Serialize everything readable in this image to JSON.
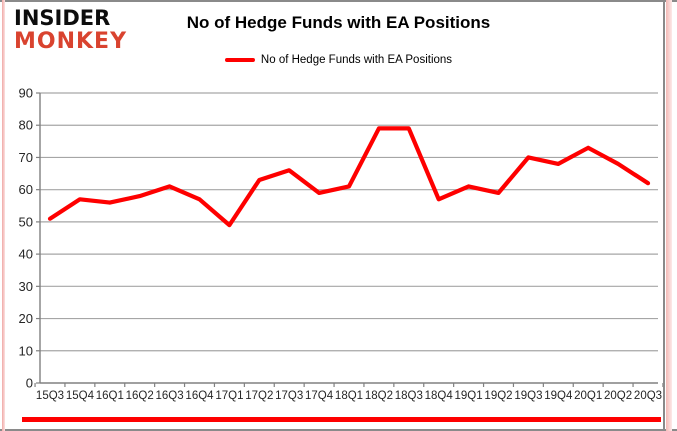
{
  "header": {
    "logo_line1": "INSIDER",
    "logo_line2": "MONKEY",
    "title": "No of Hedge Funds with EA Positions"
  },
  "legend": {
    "label": "No of Hedge Funds with EA Positions"
  },
  "colors": {
    "series_line": "#fe0000",
    "logo_accent": "#d9432f",
    "gridline": "#a6a6a6",
    "axis": "#808080",
    "tick_text": "#262626",
    "frame": "#8a8a8a",
    "edge_glow": "#f3b9b6"
  },
  "chart_data": {
    "type": "line",
    "title": "No of Hedge Funds with EA Positions",
    "categories": [
      "15Q3",
      "15Q4",
      "16Q1",
      "16Q2",
      "16Q3",
      "16Q4",
      "17Q1",
      "17Q2",
      "17Q3",
      "17Q4",
      "18Q1",
      "18Q2",
      "18Q3",
      "18Q4",
      "19Q1",
      "19Q2",
      "19Q3",
      "19Q4",
      "20Q1",
      "20Q2",
      "20Q3"
    ],
    "series": [
      {
        "name": "No of Hedge Funds with EA Positions",
        "color": "#fe0000",
        "values": [
          51,
          57,
          56,
          58,
          61,
          57,
          49,
          63,
          66,
          59,
          61,
          79,
          79,
          57,
          61,
          59,
          70,
          68,
          73,
          68,
          62
        ]
      }
    ],
    "xlabel": "",
    "ylabel": "",
    "ylim": [
      0,
      90
    ],
    "ytick_step": 10,
    "grid": true,
    "legend_position": "top-center"
  }
}
